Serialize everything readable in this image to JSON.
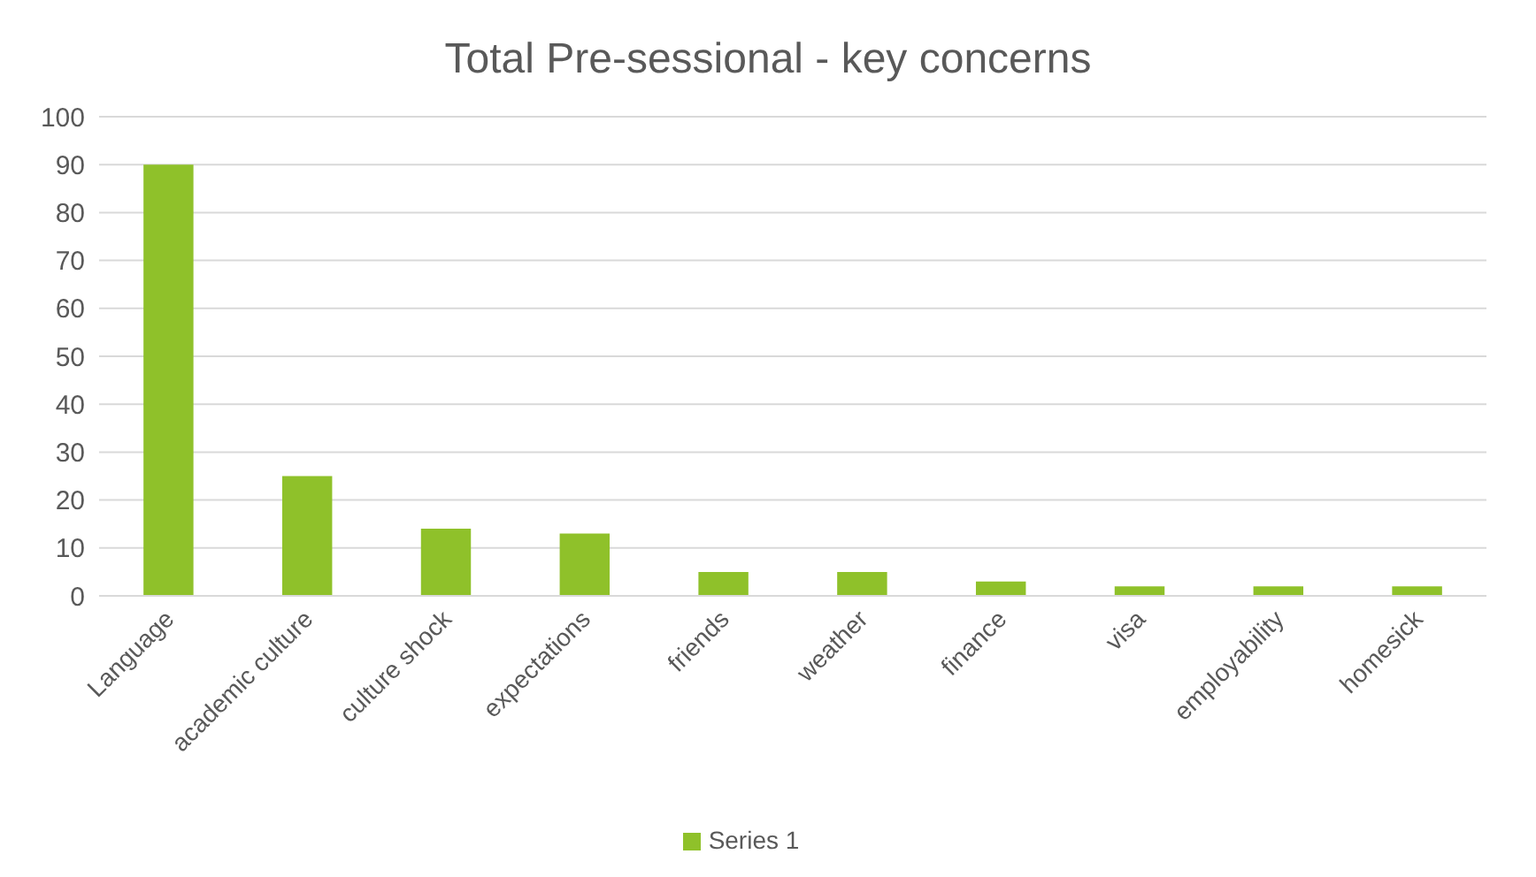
{
  "chart_data": {
    "type": "bar",
    "title": "Total Pre-sessional - key concerns",
    "categories": [
      "Language",
      "academic culture",
      "culture shock",
      "expectations",
      "friends",
      "weather",
      "finance",
      "visa",
      "employability",
      "homesick"
    ],
    "series": [
      {
        "name": "Series 1",
        "color": "#8fc12a",
        "values": [
          90,
          25,
          14,
          13,
          5,
          5,
          3,
          2,
          2,
          2
        ]
      }
    ],
    "ylim": [
      0,
      100
    ],
    "yticks": [
      0,
      10,
      20,
      30,
      40,
      50,
      60,
      70,
      80,
      90,
      100
    ],
    "grid": "y",
    "legend": "bottom"
  }
}
